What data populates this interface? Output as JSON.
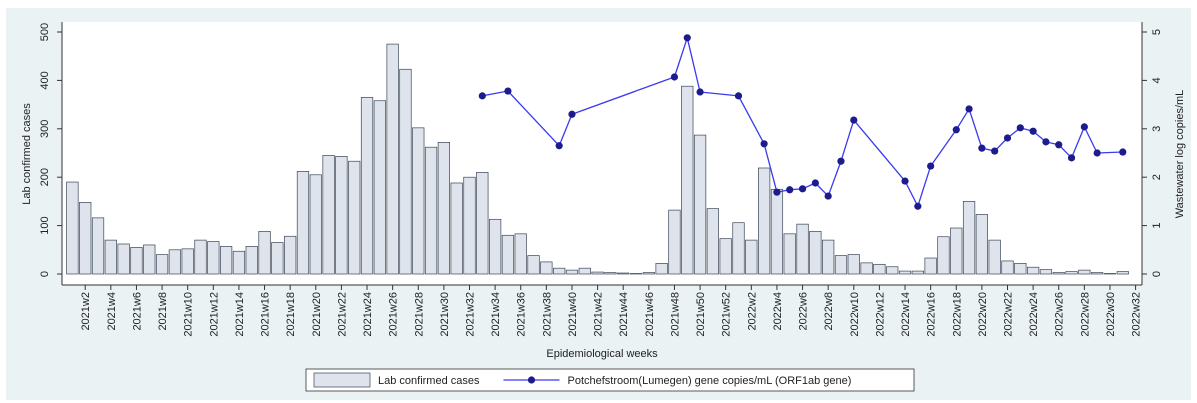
{
  "chart_data": {
    "type": "bar_line",
    "x_label": "Epidemiological weeks",
    "y_label": "Lab confirmed cases",
    "y2_label": "Wastewater log copies/mL",
    "categories": [
      null,
      "2021w2",
      null,
      "2021w4",
      null,
      "2021w6",
      null,
      "2021w8",
      null,
      "2021w10",
      null,
      "2021w12",
      null,
      "2021w14",
      null,
      "2021w16",
      null,
      "2021w18",
      null,
      "2021w20",
      null,
      "2021w22",
      null,
      "2021w24",
      null,
      "2021w26",
      null,
      "2021w28",
      null,
      "2021w30",
      null,
      "2021w32",
      null,
      "2021w34",
      null,
      "2021w36",
      null,
      "2021w38",
      null,
      "2021w40",
      null,
      "2021w42",
      null,
      "2021w44",
      null,
      "2021w46",
      null,
      "2021w48",
      null,
      "2021w50",
      null,
      "2021w52",
      null,
      "2022w2",
      null,
      "2022w4",
      null,
      "2022w6",
      null,
      "2022w8",
      null,
      "2022w10",
      null,
      "2022w12",
      null,
      "2022w14",
      null,
      "2022w16",
      null,
      "2022w18",
      null,
      "2022w20",
      null,
      "2022w22",
      null,
      "2022w24",
      null,
      "2022w26",
      null,
      "2022w28",
      null,
      "2022w30",
      null,
      "2022w32"
    ],
    "series": [
      {
        "name": "Lab confirmed cases",
        "type": "bar",
        "color": "#dfe4ec",
        "edge_color": "#3a4656",
        "values": [
          190,
          148,
          116,
          70,
          62,
          55,
          60,
          40,
          50,
          52,
          70,
          67,
          57,
          47,
          57,
          88,
          65,
          78,
          212,
          205,
          245,
          243,
          233,
          365,
          358,
          475,
          423,
          302,
          262,
          272,
          188,
          200,
          210,
          113,
          80,
          83,
          38,
          25,
          12,
          8,
          12,
          4,
          3,
          2,
          1,
          3,
          22,
          132,
          388,
          287,
          135,
          73,
          106,
          70,
          219,
          175,
          83,
          103,
          88,
          70,
          38,
          40,
          23,
          20,
          15,
          6,
          6,
          33,
          77,
          95,
          150,
          123,
          70,
          27,
          22,
          14,
          9,
          3,
          5,
          8,
          3,
          1,
          5,
          0
        ]
      },
      {
        "name": "Potchefstroom(Lumegen) gene copies/mL (ORF1ab gene)",
        "type": "line",
        "axis": "y2",
        "color": "#3a3af0",
        "marker_color": "#1c1c8c",
        "connect_gaps": true,
        "values": [
          null,
          null,
          null,
          null,
          null,
          null,
          null,
          null,
          null,
          null,
          null,
          null,
          null,
          null,
          null,
          null,
          null,
          null,
          null,
          null,
          null,
          null,
          null,
          null,
          null,
          null,
          null,
          null,
          null,
          null,
          null,
          null,
          3.68,
          null,
          3.78,
          null,
          null,
          null,
          2.65,
          3.3,
          null,
          null,
          null,
          null,
          null,
          null,
          null,
          4.07,
          4.88,
          3.76,
          null,
          null,
          3.68,
          null,
          2.69,
          1.69,
          1.74,
          1.76,
          1.88,
          1.61,
          2.33,
          3.18,
          null,
          null,
          null,
          1.92,
          1.4,
          2.23,
          null,
          2.98,
          3.41,
          2.6,
          2.54,
          2.81,
          3.02,
          2.95,
          2.73,
          2.67,
          2.4,
          3.04,
          2.5,
          null,
          2.52,
          null
        ]
      }
    ],
    "ylim": [
      0,
      500
    ],
    "yticks": [
      0,
      100,
      200,
      300,
      400,
      500
    ],
    "y2lim": [
      0,
      5
    ],
    "y2ticks": [
      0,
      1,
      2,
      3,
      4,
      5
    ],
    "grid": false,
    "legend": "bottom"
  }
}
